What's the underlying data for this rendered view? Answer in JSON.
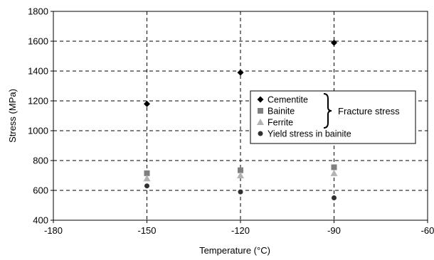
{
  "chart_data": {
    "type": "scatter",
    "title": "",
    "xlabel": "Temperature (°C)",
    "ylabel": "Stress (MPa)",
    "xlim": [
      -180,
      -60
    ],
    "ylim": [
      400,
      1800
    ],
    "xticks": [
      -180,
      -150,
      -120,
      -90,
      -60
    ],
    "yticks": [
      400,
      600,
      800,
      1000,
      1200,
      1400,
      1600,
      1800
    ],
    "grid": "dashed",
    "legend_position": "right",
    "group_label": "Fracture stress",
    "series": [
      {
        "name": "Cementite",
        "marker": "diamond",
        "color": "#000000",
        "x": [
          -150,
          -120,
          -90
        ],
        "y": [
          1180,
          1390,
          1590
        ]
      },
      {
        "name": "Bainite",
        "marker": "square",
        "color": "#808080",
        "x": [
          -150,
          -120,
          -90
        ],
        "y": [
          715,
          735,
          755
        ]
      },
      {
        "name": "Ferrite",
        "marker": "triangle",
        "color": "#b4b4b4",
        "x": [
          -150,
          -120,
          -90
        ],
        "y": [
          680,
          700,
          715
        ]
      },
      {
        "name": "Yield stress in bainite",
        "marker": "circle",
        "color": "#303030",
        "x": [
          -150,
          -120,
          -90
        ],
        "y": [
          630,
          590,
          550
        ]
      }
    ]
  }
}
